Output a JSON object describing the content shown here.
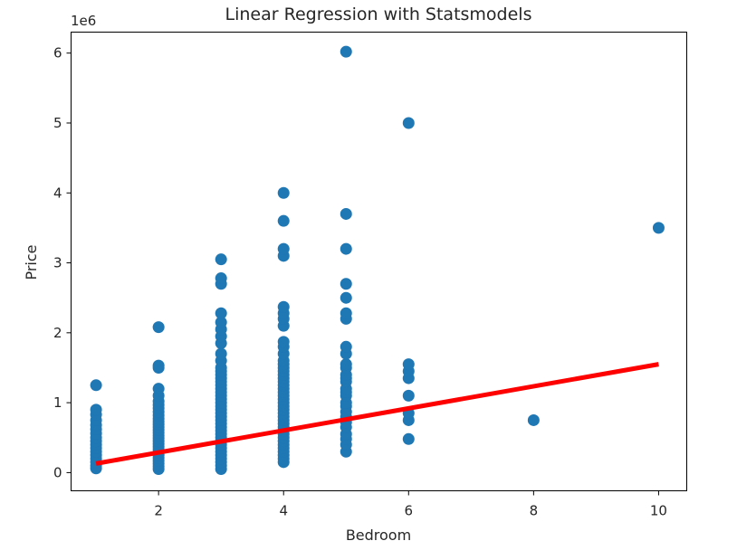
{
  "chart_data": {
    "type": "scatter",
    "title": "Linear Regression with Statsmodels",
    "xlabel": "Bedroom",
    "ylabel": "Price",
    "y_scale_label": "1e6",
    "xlim": [
      0.6,
      10.45
    ],
    "ylim": [
      -260000,
      6300000
    ],
    "xticks": [
      2,
      4,
      6,
      8,
      10
    ],
    "yticks": [
      0,
      1000000,
      2000000,
      3000000,
      4000000,
      5000000,
      6000000
    ],
    "ytick_labels": [
      "0",
      "1",
      "2",
      "3",
      "4",
      "5",
      "6"
    ],
    "grid": false,
    "legend": "none",
    "colors": {
      "scatter": "#1f77b4",
      "fit": "#ff0000",
      "axes": "#000000"
    },
    "scatter": [
      {
        "x": 1,
        "y": 60000
      },
      {
        "x": 1,
        "y": 100000
      },
      {
        "x": 1,
        "y": 150000
      },
      {
        "x": 1,
        "y": 200000
      },
      {
        "x": 1,
        "y": 250000
      },
      {
        "x": 1,
        "y": 300000
      },
      {
        "x": 1,
        "y": 350000
      },
      {
        "x": 1,
        "y": 400000
      },
      {
        "x": 1,
        "y": 450000
      },
      {
        "x": 1,
        "y": 500000
      },
      {
        "x": 1,
        "y": 560000
      },
      {
        "x": 1,
        "y": 620000
      },
      {
        "x": 1,
        "y": 680000
      },
      {
        "x": 1,
        "y": 750000
      },
      {
        "x": 1,
        "y": 830000
      },
      {
        "x": 1,
        "y": 900000
      },
      {
        "x": 1,
        "y": 1250000
      },
      {
        "x": 2,
        "y": 50000
      },
      {
        "x": 2,
        "y": 90000
      },
      {
        "x": 2,
        "y": 130000
      },
      {
        "x": 2,
        "y": 170000
      },
      {
        "x": 2,
        "y": 210000
      },
      {
        "x": 2,
        "y": 250000
      },
      {
        "x": 2,
        "y": 290000
      },
      {
        "x": 2,
        "y": 330000
      },
      {
        "x": 2,
        "y": 370000
      },
      {
        "x": 2,
        "y": 410000
      },
      {
        "x": 2,
        "y": 450000
      },
      {
        "x": 2,
        "y": 490000
      },
      {
        "x": 2,
        "y": 530000
      },
      {
        "x": 2,
        "y": 570000
      },
      {
        "x": 2,
        "y": 610000
      },
      {
        "x": 2,
        "y": 650000
      },
      {
        "x": 2,
        "y": 690000
      },
      {
        "x": 2,
        "y": 730000
      },
      {
        "x": 2,
        "y": 770000
      },
      {
        "x": 2,
        "y": 820000
      },
      {
        "x": 2,
        "y": 870000
      },
      {
        "x": 2,
        "y": 920000
      },
      {
        "x": 2,
        "y": 970000
      },
      {
        "x": 2,
        "y": 1020000
      },
      {
        "x": 2,
        "y": 1100000
      },
      {
        "x": 2,
        "y": 1200000
      },
      {
        "x": 2,
        "y": 1500000
      },
      {
        "x": 2,
        "y": 1530000
      },
      {
        "x": 2,
        "y": 2080000
      },
      {
        "x": 3,
        "y": 50000
      },
      {
        "x": 3,
        "y": 100000
      },
      {
        "x": 3,
        "y": 150000
      },
      {
        "x": 3,
        "y": 200000
      },
      {
        "x": 3,
        "y": 250000
      },
      {
        "x": 3,
        "y": 300000
      },
      {
        "x": 3,
        "y": 350000
      },
      {
        "x": 3,
        "y": 400000
      },
      {
        "x": 3,
        "y": 450000
      },
      {
        "x": 3,
        "y": 500000
      },
      {
        "x": 3,
        "y": 550000
      },
      {
        "x": 3,
        "y": 600000
      },
      {
        "x": 3,
        "y": 650000
      },
      {
        "x": 3,
        "y": 700000
      },
      {
        "x": 3,
        "y": 750000
      },
      {
        "x": 3,
        "y": 800000
      },
      {
        "x": 3,
        "y": 850000
      },
      {
        "x": 3,
        "y": 900000
      },
      {
        "x": 3,
        "y": 950000
      },
      {
        "x": 3,
        "y": 1000000
      },
      {
        "x": 3,
        "y": 1050000
      },
      {
        "x": 3,
        "y": 1100000
      },
      {
        "x": 3,
        "y": 1150000
      },
      {
        "x": 3,
        "y": 1200000
      },
      {
        "x": 3,
        "y": 1250000
      },
      {
        "x": 3,
        "y": 1300000
      },
      {
        "x": 3,
        "y": 1350000
      },
      {
        "x": 3,
        "y": 1400000
      },
      {
        "x": 3,
        "y": 1450000
      },
      {
        "x": 3,
        "y": 1500000
      },
      {
        "x": 3,
        "y": 1600000
      },
      {
        "x": 3,
        "y": 1700000
      },
      {
        "x": 3,
        "y": 1850000
      },
      {
        "x": 3,
        "y": 1950000
      },
      {
        "x": 3,
        "y": 2050000
      },
      {
        "x": 3,
        "y": 2150000
      },
      {
        "x": 3,
        "y": 2280000
      },
      {
        "x": 3,
        "y": 2700000
      },
      {
        "x": 3,
        "y": 2780000
      },
      {
        "x": 3,
        "y": 3050000
      },
      {
        "x": 4,
        "y": 150000
      },
      {
        "x": 4,
        "y": 200000
      },
      {
        "x": 4,
        "y": 250000
      },
      {
        "x": 4,
        "y": 300000
      },
      {
        "x": 4,
        "y": 350000
      },
      {
        "x": 4,
        "y": 400000
      },
      {
        "x": 4,
        "y": 450000
      },
      {
        "x": 4,
        "y": 500000
      },
      {
        "x": 4,
        "y": 550000
      },
      {
        "x": 4,
        "y": 600000
      },
      {
        "x": 4,
        "y": 650000
      },
      {
        "x": 4,
        "y": 700000
      },
      {
        "x": 4,
        "y": 750000
      },
      {
        "x": 4,
        "y": 800000
      },
      {
        "x": 4,
        "y": 850000
      },
      {
        "x": 4,
        "y": 900000
      },
      {
        "x": 4,
        "y": 950000
      },
      {
        "x": 4,
        "y": 1000000
      },
      {
        "x": 4,
        "y": 1050000
      },
      {
        "x": 4,
        "y": 1100000
      },
      {
        "x": 4,
        "y": 1150000
      },
      {
        "x": 4,
        "y": 1200000
      },
      {
        "x": 4,
        "y": 1250000
      },
      {
        "x": 4,
        "y": 1300000
      },
      {
        "x": 4,
        "y": 1350000
      },
      {
        "x": 4,
        "y": 1400000
      },
      {
        "x": 4,
        "y": 1450000
      },
      {
        "x": 4,
        "y": 1500000
      },
      {
        "x": 4,
        "y": 1550000
      },
      {
        "x": 4,
        "y": 1600000
      },
      {
        "x": 4,
        "y": 1700000
      },
      {
        "x": 4,
        "y": 1800000
      },
      {
        "x": 4,
        "y": 1870000
      },
      {
        "x": 4,
        "y": 2100000
      },
      {
        "x": 4,
        "y": 2200000
      },
      {
        "x": 4,
        "y": 2280000
      },
      {
        "x": 4,
        "y": 2370000
      },
      {
        "x": 4,
        "y": 3100000
      },
      {
        "x": 4,
        "y": 3200000
      },
      {
        "x": 4,
        "y": 3600000
      },
      {
        "x": 4,
        "y": 4000000
      },
      {
        "x": 5,
        "y": 300000
      },
      {
        "x": 5,
        "y": 400000
      },
      {
        "x": 5,
        "y": 480000
      },
      {
        "x": 5,
        "y": 550000
      },
      {
        "x": 5,
        "y": 650000
      },
      {
        "x": 5,
        "y": 720000
      },
      {
        "x": 5,
        "y": 800000
      },
      {
        "x": 5,
        "y": 870000
      },
      {
        "x": 5,
        "y": 950000
      },
      {
        "x": 5,
        "y": 1000000
      },
      {
        "x": 5,
        "y": 1100000
      },
      {
        "x": 5,
        "y": 1150000
      },
      {
        "x": 5,
        "y": 1200000
      },
      {
        "x": 5,
        "y": 1300000
      },
      {
        "x": 5,
        "y": 1350000
      },
      {
        "x": 5,
        "y": 1400000
      },
      {
        "x": 5,
        "y": 1500000
      },
      {
        "x": 5,
        "y": 1550000
      },
      {
        "x": 5,
        "y": 1700000
      },
      {
        "x": 5,
        "y": 1800000
      },
      {
        "x": 5,
        "y": 2200000
      },
      {
        "x": 5,
        "y": 2280000
      },
      {
        "x": 5,
        "y": 2500000
      },
      {
        "x": 5,
        "y": 2700000
      },
      {
        "x": 5,
        "y": 3200000
      },
      {
        "x": 5,
        "y": 3700000
      },
      {
        "x": 5,
        "y": 6020000
      },
      {
        "x": 6,
        "y": 480000
      },
      {
        "x": 6,
        "y": 750000
      },
      {
        "x": 6,
        "y": 850000
      },
      {
        "x": 6,
        "y": 1100000
      },
      {
        "x": 6,
        "y": 1350000
      },
      {
        "x": 6,
        "y": 1450000
      },
      {
        "x": 6,
        "y": 1550000
      },
      {
        "x": 6,
        "y": 5000000
      },
      {
        "x": 8,
        "y": 750000
      },
      {
        "x": 10,
        "y": 3500000
      }
    ],
    "regression_line": {
      "x": [
        1,
        10
      ],
      "y": [
        130000,
        1550000
      ]
    }
  }
}
